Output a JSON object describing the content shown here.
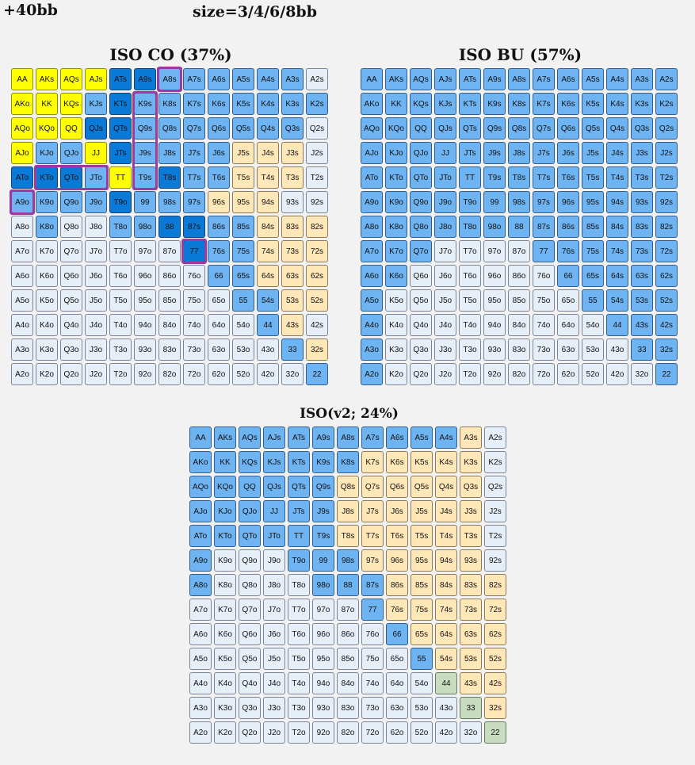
{
  "header": {
    "stack": "+40bb",
    "sizes": "size=3/4/6/8bb"
  },
  "colors": {
    "y": "#ffff00",
    "d": "#0a7ad8",
    "l": "#6fb4f2",
    "o": "#ffe7b8",
    "w": "#e6eef7",
    "g": "#c8ddc0",
    "highlight": "#9c3aa1"
  },
  "grids": [
    {
      "title": "ISO CO (37%)",
      "cells": [
        "yyyyddllllll",
        "yyyldllllllll",
        "yyyddlllllll",
        "yllydllllooo",
        "dddlyldllooo",
        "lllldlllooo",
        "wlwwllddllooo",
        "wwwwwwwdllooo",
        "wwwwwwwwllooo",
        "wwwwwwwwwllooo",
        "wwwwwwwwwwlo",
        "wwwwwwwwwwwlo",
        "wwwwwwwwwwwwl"
      ],
      "highlights": [
        {
          "r": 0,
          "c": 6,
          "h": 1,
          "w": 1
        },
        {
          "r": 1,
          "c": 5,
          "h": 4,
          "w": 1
        },
        {
          "r": 4,
          "c": 1,
          "h": 1,
          "w": 3
        },
        {
          "r": 5,
          "c": 0,
          "h": 1,
          "w": 1
        },
        {
          "r": 7,
          "c": 7,
          "h": 1,
          "w": 1
        }
      ]
    },
    {
      "title": "ISO BU (57%)",
      "cells": [
        "lllllllllllll",
        "lllllllllllll",
        "lllllllllllll",
        "lllllllllllll",
        "lllllllllllll",
        "lllllllllllll",
        "lllllllllllll",
        "lllwwwwllllll",
        "llwwwwwwlllll",
        "lwwwwwwwwllll",
        "lwwwwwwwwwlll",
        "lwwwwwwwwwwll",
        "lwwwwwwwwwwwl"
      ],
      "highlights": []
    },
    {
      "title": "ISO(v2; 24%)",
      "cells": [
        "lllllllllllo",
        "lllllllooooo",
        "lllllloooooo",
        "lllllloooooo",
        "lllllloooooo",
        "lwwwlllooooo",
        "lwwwwlllooooo",
        "wwwwwwwlooooo",
        "wwwwwwwwloooo",
        "wwwwwwwwwlooo",
        "wwwwwwwwwwgoo",
        "wwwwwwwwwwwgo",
        "wwwwwwwwwwwwg"
      ],
      "highlights": []
    }
  ]
}
